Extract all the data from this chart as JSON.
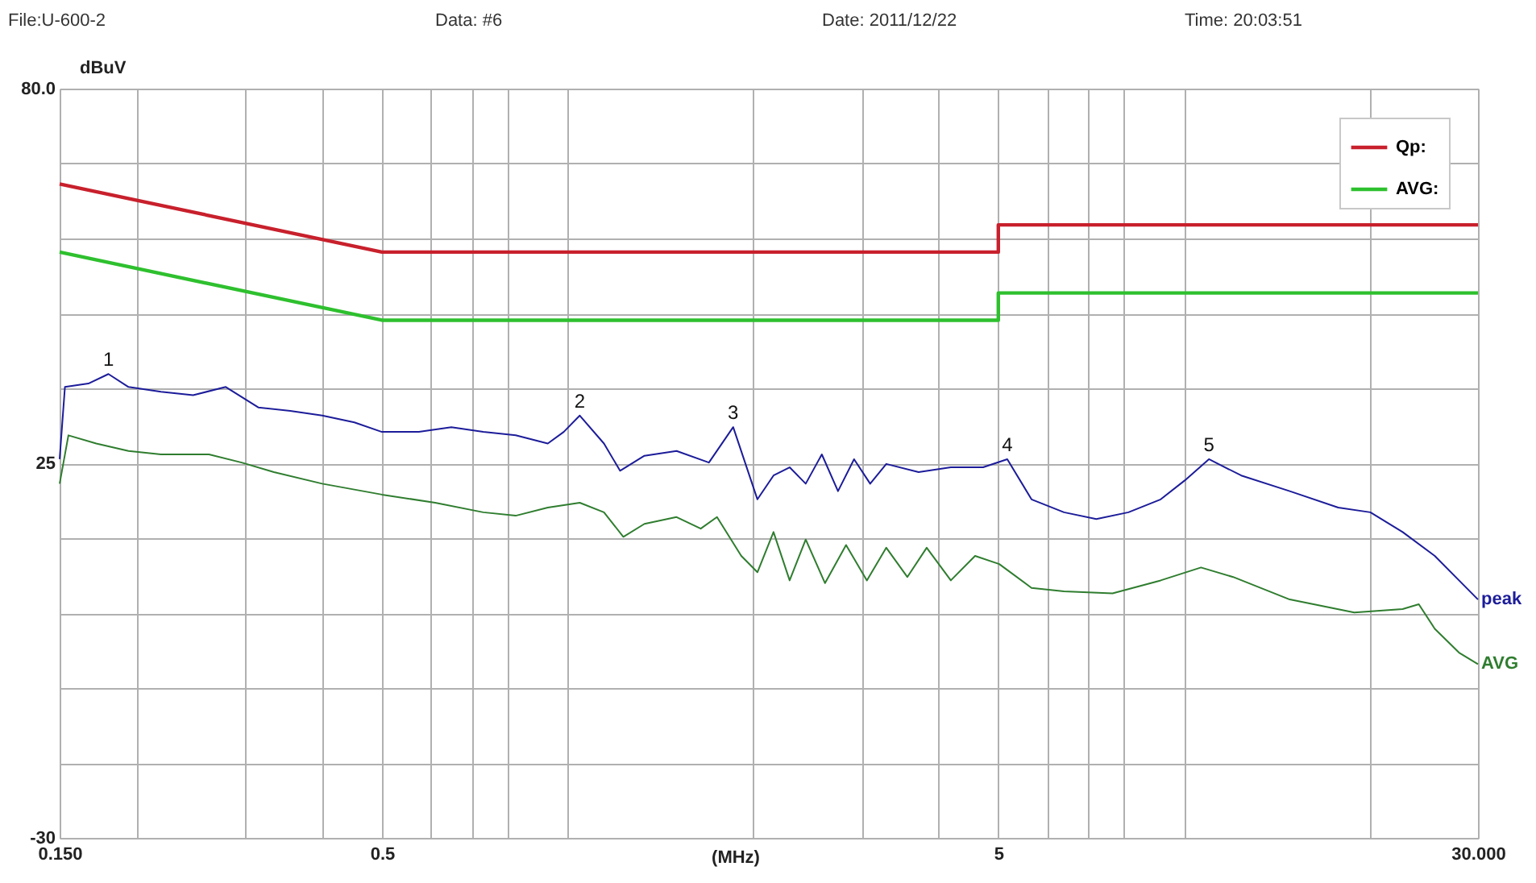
{
  "chart_data": {
    "type": "line",
    "xlabel": "(MHz)",
    "ylabel": "dBuV",
    "annotations": [
      "File:U-600-2",
      "Data: #6",
      "Date: 2011/12/22",
      "Time: 20:03:51",
      {
        "text": "1",
        "x": 0.18,
        "y": 38.1
      },
      {
        "text": "2",
        "x": 1.047,
        "y": 32.0
      },
      {
        "text": "3",
        "x": 1.857,
        "y": 30.3
      },
      {
        "text": "4",
        "x": 5.17,
        "y": 25.6
      },
      {
        "text": "5",
        "x": 10.98,
        "y": 25.6
      }
    ],
    "log": "x",
    "xlim": [
      0.15,
      30
    ],
    "ylim": [
      -30,
      80
    ],
    "xticks": [
      {
        "value": 0.15,
        "label": "0.150"
      },
      {
        "value": 0.2,
        "label": null
      },
      {
        "value": 0.3,
        "label": null
      },
      {
        "value": 0.4,
        "label": null
      },
      0.5,
      {
        "value": 0.6,
        "label": null
      },
      {
        "value": 0.7,
        "label": null
      },
      {
        "value": 0.8,
        "label": null
      },
      {
        "value": 1,
        "label": null
      },
      {
        "value": 2,
        "label": null
      },
      {
        "value": 3,
        "label": null
      },
      {
        "value": 4,
        "label": null
      },
      5,
      {
        "value": 6,
        "label": null
      },
      {
        "value": 7,
        "label": null
      },
      {
        "value": 8,
        "label": null
      },
      {
        "value": 10,
        "label": null
      },
      {
        "value": 20,
        "label": null
      },
      {
        "value": 30,
        "label": "30.000"
      }
    ],
    "yticks": [
      -30,
      {
        "value": -19,
        "label": null
      },
      {
        "value": -8,
        "label": null
      },
      {
        "value": 3,
        "label": null
      },
      {
        "value": 14,
        "label": null
      },
      25,
      {
        "value": 36,
        "label": null
      },
      {
        "value": 47,
        "label": null
      },
      {
        "value": 58,
        "label": null
      },
      {
        "value": 69,
        "label": null
      },
      {
        "value": 80,
        "label": "80.0"
      }
    ],
    "grid": true,
    "legend": "top right",
    "series": [
      {
        "name": "Qp:",
        "color": "#c8202c",
        "x": [
          0.15,
          0.5,
          5,
          5,
          30
        ],
        "values": [
          66,
          56,
          56,
          60,
          60
        ]
      },
      {
        "name": "AVG:",
        "color": "#2ec02e",
        "x": [
          0.15,
          0.5,
          5,
          5,
          30
        ],
        "values": [
          56,
          46,
          46,
          50,
          50
        ]
      },
      {
        "name": "peak",
        "color": "#1c1c9a",
        "x": [
          0.15,
          0.153,
          0.167,
          0.18,
          0.194,
          0.219,
          0.247,
          0.279,
          0.315,
          0.355,
          0.4,
          0.451,
          0.5,
          0.574,
          0.648,
          0.73,
          0.824,
          0.929,
          0.986,
          1.047,
          1.146,
          1.217,
          1.333,
          1.503,
          1.696,
          1.857,
          2.033,
          2.159,
          2.293,
          2.435,
          2.586,
          2.747,
          2.917,
          3.098,
          3.29,
          3.712,
          4.187,
          4.724,
          5.17,
          5.66,
          6.39,
          7.21,
          8.13,
          9.17,
          10.04,
          10.98,
          12.39,
          14.85,
          17.8,
          20.07,
          22.64,
          25.53,
          27.95,
          30.0
        ],
        "values": [
          25.6,
          36.2,
          36.7,
          38.1,
          36.2,
          35.5,
          35.0,
          36.2,
          33.2,
          32.7,
          32.0,
          31.0,
          29.6,
          29.6,
          30.3,
          29.6,
          29.1,
          27.9,
          29.6,
          32.0,
          27.9,
          23.9,
          26.1,
          26.8,
          25.1,
          30.3,
          19.7,
          23.2,
          24.4,
          22.0,
          26.3,
          20.9,
          25.6,
          22.0,
          24.9,
          23.7,
          24.4,
          24.4,
          25.6,
          19.7,
          17.8,
          16.8,
          17.8,
          19.7,
          22.5,
          25.6,
          23.2,
          20.9,
          18.5,
          17.8,
          14.9,
          11.4,
          7.8,
          5.0
        ]
      },
      {
        "name": "AVG",
        "color": "#2f7d2f",
        "x": [
          0.15,
          0.155,
          0.172,
          0.194,
          0.219,
          0.262,
          0.296,
          0.334,
          0.4,
          0.5,
          0.61,
          0.73,
          0.824,
          0.929,
          1.047,
          1.146,
          1.232,
          1.333,
          1.503,
          1.645,
          1.748,
          1.914,
          2.033,
          2.159,
          2.293,
          2.435,
          2.617,
          2.831,
          3.06,
          3.29,
          3.559,
          3.826,
          4.187,
          4.584,
          5.017,
          5.66,
          6.39,
          7.66,
          9.17,
          10.66,
          12.02,
          14.85,
          18.9,
          22.64,
          24.05,
          25.53,
          27.95,
          30.0
        ],
        "values": [
          22.0,
          29.1,
          27.9,
          26.8,
          26.3,
          26.3,
          25.1,
          23.7,
          22.0,
          20.4,
          19.2,
          17.8,
          17.3,
          18.5,
          19.2,
          17.8,
          14.2,
          16.1,
          17.1,
          15.4,
          17.1,
          11.4,
          9.0,
          14.9,
          7.8,
          13.8,
          7.4,
          13.0,
          7.8,
          12.6,
          8.3,
          12.6,
          7.8,
          11.4,
          10.2,
          6.7,
          6.2,
          5.9,
          7.8,
          9.7,
          8.3,
          5.0,
          3.1,
          3.6,
          4.3,
          0.7,
          -2.8,
          -4.5
        ]
      }
    ]
  }
}
